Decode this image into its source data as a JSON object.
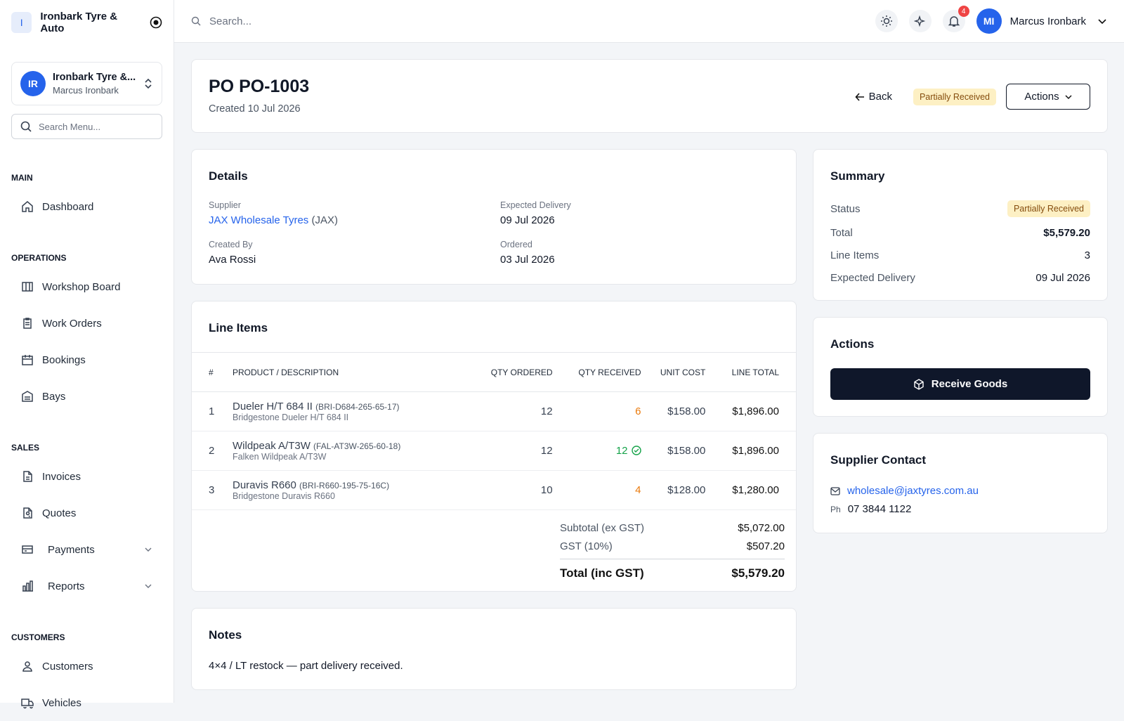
{
  "sidebar": {
    "brand_initial": "I",
    "brand": "Ironbark Tyre & Auto",
    "org": {
      "initials": "IR",
      "name": "Ironbark Tyre &...",
      "user": "Marcus Ironbark"
    },
    "search_placeholder": "Search Menu...",
    "sections": [
      {
        "title": "MAIN",
        "items": [
          "Dashboard"
        ]
      },
      {
        "title": "OPERATIONS",
        "items": [
          "Workshop Board",
          "Work Orders",
          "Bookings",
          "Bays"
        ]
      },
      {
        "title": "SALES",
        "items": [
          "Invoices",
          "Quotes",
          "Payments",
          "Reports"
        ]
      },
      {
        "title": "CUSTOMERS",
        "items": [
          "Customers",
          "Vehicles"
        ]
      }
    ]
  },
  "topbar": {
    "search_placeholder": "Search...",
    "notifications": "4",
    "user_initials": "MI",
    "user_name": "Marcus Ironbark"
  },
  "header": {
    "title": "PO PO-1003",
    "created": "Created 10 Jul 2026",
    "back": "Back",
    "status": "Partially Received",
    "actions": "Actions"
  },
  "details": {
    "title": "Details",
    "supplier_label": "Supplier",
    "supplier": "JAX Wholesale Tyres",
    "supplier_code": "(JAX)",
    "expected_label": "Expected Delivery",
    "expected": "09 Jul 2026",
    "created_by_label": "Created By",
    "created_by": "Ava Rossi",
    "ordered_label": "Ordered",
    "ordered": "03 Jul 2026"
  },
  "line_items": {
    "title": "Line Items",
    "columns": [
      "#",
      "PRODUCT / DESCRIPTION",
      "QTY ORDERED",
      "QTY RECEIVED",
      "UNIT COST",
      "LINE TOTAL"
    ],
    "rows": [
      {
        "no": "1",
        "product": "Dueler H/T 684 II",
        "sku": "(BRI-D684-265-65-17)",
        "description": "Bridgestone Dueler H/T 684 II",
        "qty_ordered": "12",
        "qty_received": "6",
        "unit_cost": "$158.00",
        "line_total": "$1,896.00"
      },
      {
        "no": "2",
        "product": "Wildpeak A/T3W",
        "sku": "(FAL-AT3W-265-60-18)",
        "description": "Falken Wildpeak A/T3W",
        "qty_ordered": "12",
        "qty_received": "12",
        "unit_cost": "$158.00",
        "line_total": "$1,896.00"
      },
      {
        "no": "3",
        "product": "Duravis R660",
        "sku": "(BRI-R660-195-75-16C)",
        "description": "Bridgestone Duravis R660",
        "qty_ordered": "10",
        "qty_received": "4",
        "unit_cost": "$128.00",
        "line_total": "$1,280.00"
      }
    ],
    "subtotal_label": "Subtotal (ex GST)",
    "subtotal": "$5,072.00",
    "gst_label": "GST (10%)",
    "gst": "$507.20",
    "total_label": "Total (inc GST)",
    "total": "$5,579.20"
  },
  "notes": {
    "title": "Notes",
    "text": "4×4 / LT restock — part delivery received."
  },
  "summary": {
    "title": "Summary",
    "status_label": "Status",
    "status": "Partially Received",
    "total_label": "Total",
    "total": "$5,579.20",
    "items_label": "Line Items",
    "items": "3",
    "expected_label": "Expected Delivery",
    "expected": "09 Jul 2026"
  },
  "actions": {
    "title": "Actions",
    "receive": "Receive Goods"
  },
  "contact": {
    "title": "Supplier Contact",
    "email": "wholesale@jaxtyres.com.au",
    "phone_label": "Ph",
    "phone": "07 3844 1122"
  }
}
